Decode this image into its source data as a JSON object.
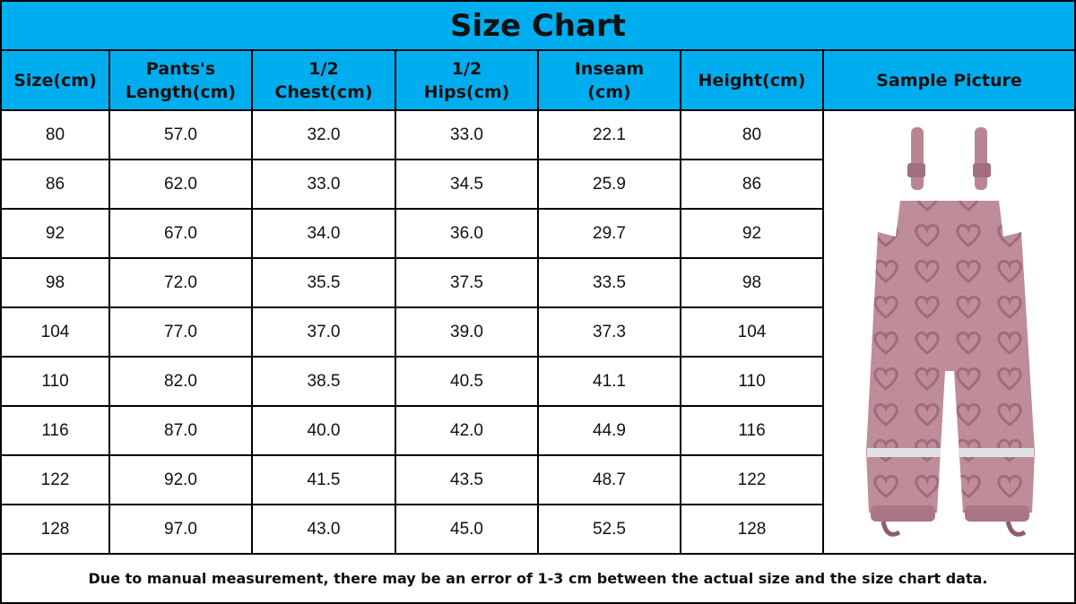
{
  "title": "Size Chart",
  "table": {
    "header": [
      "Size(cm)",
      "Pants's Length(cm)",
      "1/2 Chest(cm)",
      "1/2 Hips(cm)",
      "Inseam (cm)",
      "Height(cm)",
      "Sample Picture"
    ],
    "rows": [
      [
        "80",
        "57.0",
        "32.0",
        "33.0",
        "22.1",
        "80"
      ],
      [
        "86",
        "62.0",
        "33.0",
        "34.5",
        "25.9",
        "86"
      ],
      [
        "92",
        "67.0",
        "34.0",
        "36.0",
        "29.7",
        "92"
      ],
      [
        "98",
        "72.0",
        "35.5",
        "37.5",
        "33.5",
        "98"
      ],
      [
        "104",
        "77.0",
        "37.0",
        "39.0",
        "37.3",
        "104"
      ],
      [
        "110",
        "82.0",
        "38.5",
        "40.5",
        "41.1",
        "110"
      ],
      [
        "116",
        "87.0",
        "40.0",
        "42.0",
        "44.9",
        "116"
      ],
      [
        "122",
        "92.0",
        "41.5",
        "43.5",
        "48.7",
        "122"
      ],
      [
        "128",
        "97.0",
        "43.0",
        "45.0",
        "52.5",
        "128"
      ]
    ]
  },
  "note": "Due to manual measurement, there may be an error of 1-3 cm between the actual size and the size chart data."
}
